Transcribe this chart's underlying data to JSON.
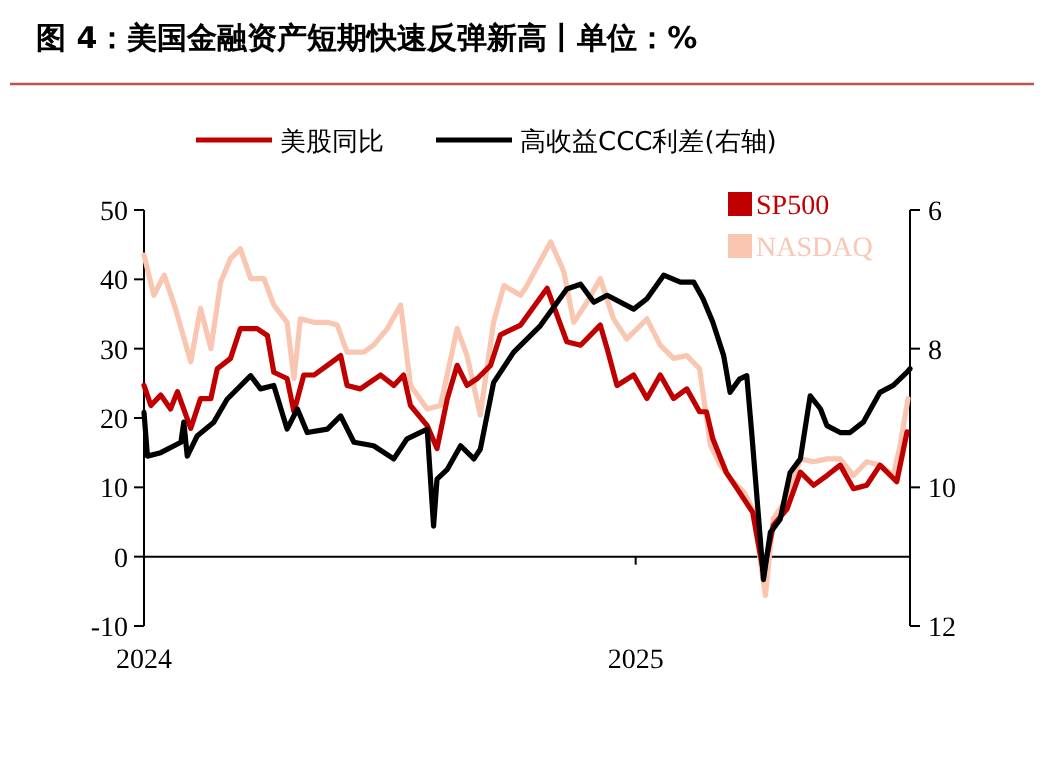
{
  "chart_data": {
    "type": "line",
    "title": "图 4：美国金融资产短期快速反弹新高丨单位：%",
    "legend_title": "美股同比",
    "legend": "top",
    "xlim": [
      2024,
      2025.558
    ],
    "xticks": [
      2024,
      2025
    ],
    "ylim": [
      -10,
      50
    ],
    "yticks": [
      -10,
      0,
      10,
      20,
      30,
      40,
      50
    ],
    "y2lim": [
      12,
      6
    ],
    "y2ticks": [
      6,
      8,
      10,
      12
    ],
    "series": [
      {
        "name": "SP500",
        "color": "#c00000",
        "x": [
          2024.0,
          2024.014,
          2024.034,
          2024.054,
          2024.068,
          2024.095,
          2024.115,
          2024.136,
          2024.149,
          2024.176,
          2024.196,
          2024.23,
          2024.251,
          2024.264,
          2024.291,
          2024.305,
          2024.325,
          2024.346,
          2024.373,
          2024.4,
          2024.413,
          2024.44,
          2024.481,
          2024.508,
          2024.528,
          2024.542,
          2024.576,
          2024.596,
          2024.617,
          2024.637,
          2024.657,
          2024.678,
          2024.705,
          2024.725,
          2024.766,
          2024.82,
          2024.86,
          2024.888,
          2024.928,
          2024.942,
          2024.962,
          2024.996,
          2025.023,
          2025.05,
          2025.077,
          2025.104,
          2025.13,
          2025.144,
          2025.157,
          2025.184,
          2025.211,
          2025.238,
          2025.26,
          2025.28,
          2025.308,
          2025.335,
          2025.362,
          2025.389,
          2025.416,
          2025.443,
          2025.47,
          2025.497,
          2025.531,
          2025.552
        ],
        "values": [
          24.7,
          21.8,
          23.3,
          21.3,
          23.8,
          18.5,
          22.8,
          22.8,
          27.1,
          28.6,
          32.9,
          32.9,
          31.9,
          26.6,
          25.7,
          20.9,
          26.2,
          26.2,
          27.6,
          29.0,
          24.7,
          24.2,
          26.2,
          24.7,
          26.2,
          21.8,
          18.9,
          15.6,
          22.8,
          27.6,
          24.7,
          25.7,
          27.6,
          32.0,
          33.4,
          38.7,
          31.0,
          30.5,
          33.4,
          30.0,
          24.7,
          26.2,
          22.8,
          26.2,
          22.8,
          24.2,
          20.9,
          20.9,
          17.0,
          12.2,
          9.3,
          6.4,
          -2.2,
          4.5,
          6.9,
          12.2,
          10.3,
          11.7,
          13.2,
          9.8,
          10.3,
          13.2,
          10.8,
          18.0
        ]
      },
      {
        "name": "NASDAQ",
        "color": "#f9c6b1",
        "x": [
          2024.0,
          2024.02,
          2024.041,
          2024.064,
          2024.095,
          2024.115,
          2024.136,
          2024.156,
          2024.176,
          2024.196,
          2024.217,
          2024.244,
          2024.264,
          2024.291,
          2024.305,
          2024.318,
          2024.346,
          2024.373,
          2024.393,
          2024.413,
          2024.447,
          2024.467,
          2024.495,
          2024.522,
          2024.542,
          2024.576,
          2024.603,
          2024.637,
          2024.657,
          2024.684,
          2024.711,
          2024.732,
          2024.766,
          2024.779,
          2024.827,
          2024.854,
          2024.874,
          2024.901,
          2024.928,
          2024.955,
          2024.982,
          2025.023,
          2025.05,
          2025.077,
          2025.104,
          2025.13,
          2025.152,
          2025.172,
          2025.192,
          2025.22,
          2025.238,
          2025.264,
          2025.28,
          2025.308,
          2025.335,
          2025.362,
          2025.389,
          2025.416,
          2025.443,
          2025.47,
          2025.497,
          2025.524,
          2025.538,
          2025.554
        ],
        "values": [
          43.5,
          37.7,
          40.6,
          35.8,
          28.1,
          35.8,
          30.0,
          39.6,
          43.0,
          44.4,
          40.1,
          40.1,
          36.3,
          33.8,
          25.7,
          34.3,
          33.8,
          33.8,
          33.4,
          29.5,
          29.5,
          30.5,
          32.9,
          36.3,
          24.7,
          21.3,
          21.8,
          32.9,
          29.0,
          20.4,
          33.8,
          39.1,
          37.7,
          39.1,
          45.4,
          41.1,
          33.8,
          36.7,
          40.1,
          34.3,
          31.4,
          34.3,
          30.5,
          28.6,
          29.0,
          27.1,
          16.1,
          13.2,
          11.3,
          9.3,
          6.9,
          -5.6,
          5.5,
          8.4,
          14.1,
          13.7,
          14.1,
          14.1,
          11.7,
          13.7,
          13.2,
          11.7,
          16.1,
          22.8
        ]
      },
      {
        "name": "高收益CCC利差(右轴)",
        "color": "#000000",
        "axis": "y2",
        "x": [
          2024.0,
          2024.007,
          2024.034,
          2024.075,
          2024.081,
          2024.088,
          2024.108,
          2024.142,
          2024.169,
          2024.217,
          2024.237,
          2024.264,
          2024.291,
          2024.312,
          2024.332,
          2024.373,
          2024.4,
          2024.427,
          2024.467,
          2024.508,
          2024.535,
          2024.576,
          2024.589,
          2024.596,
          2024.617,
          2024.644,
          2024.671,
          2024.684,
          2024.711,
          2024.752,
          2024.806,
          2024.86,
          2024.888,
          2024.915,
          2024.942,
          2024.996,
          2025.023,
          2025.057,
          2025.091,
          2025.118,
          2025.137,
          2025.157,
          2025.179,
          2025.192,
          2025.211,
          2025.226,
          2025.236,
          2025.246,
          2025.26,
          2025.274,
          2025.294,
          2025.314,
          2025.335,
          2025.355,
          2025.376,
          2025.389,
          2025.416,
          2025.436,
          2025.463,
          2025.497,
          2025.524,
          2025.552,
          2025.558
        ],
        "values": [
          8.92,
          9.55,
          9.5,
          9.35,
          9.06,
          9.55,
          9.26,
          9.06,
          8.73,
          8.39,
          8.58,
          8.53,
          9.16,
          8.87,
          9.21,
          9.16,
          8.97,
          9.35,
          9.4,
          9.59,
          9.3,
          9.16,
          10.56,
          9.88,
          9.74,
          9.4,
          9.59,
          9.45,
          8.49,
          8.05,
          7.67,
          7.14,
          7.07,
          7.33,
          7.23,
          7.43,
          7.28,
          6.94,
          7.04,
          7.04,
          7.28,
          7.62,
          8.1,
          8.63,
          8.44,
          8.39,
          9.21,
          10.08,
          11.33,
          10.65,
          10.46,
          9.79,
          9.59,
          8.68,
          8.87,
          9.11,
          9.21,
          9.21,
          9.06,
          8.63,
          8.53,
          8.34,
          8.29
        ]
      }
    ]
  }
}
